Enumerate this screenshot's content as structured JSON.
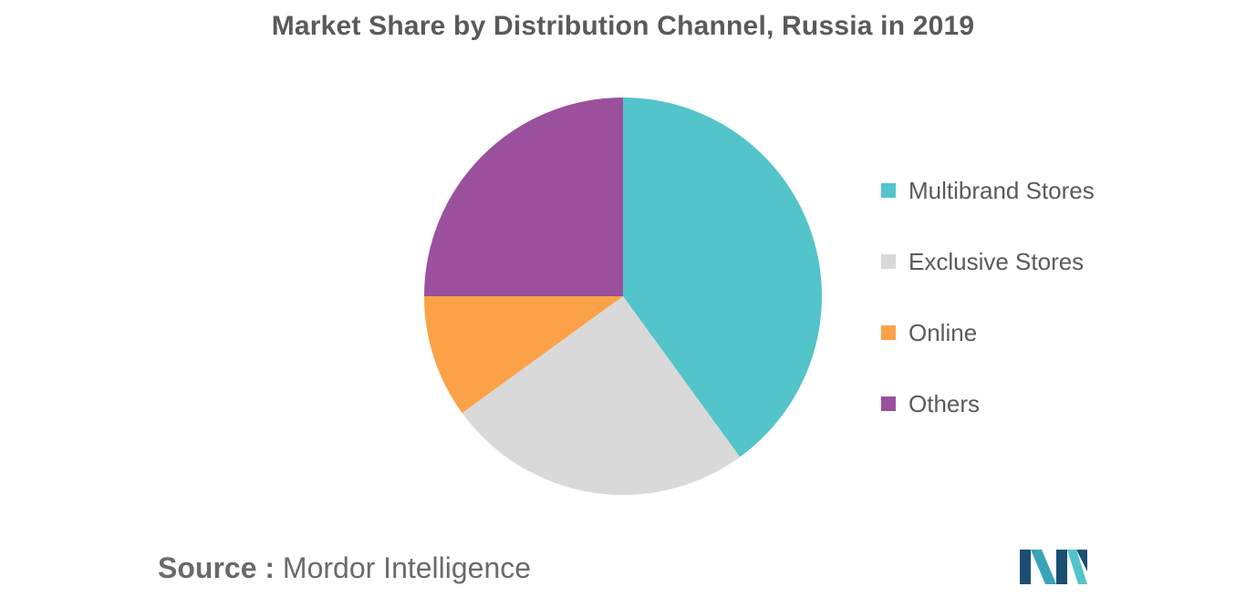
{
  "chart_data": {
    "type": "pie",
    "title": "Market Share by Distribution Channel, Russia in 2019",
    "slices": [
      {
        "label": "Multibrand Stores",
        "value": 40,
        "color": "#52c4ca"
      },
      {
        "label": "Exclusive Stores",
        "value": 25,
        "color": "#d9d9d9"
      },
      {
        "label": "Online",
        "value": 10,
        "color": "#fba249"
      },
      {
        "label": "Others",
        "value": 25,
        "color": "#9b509d"
      }
    ],
    "legend_position": "right"
  },
  "source": {
    "key": "Source :",
    "value": "Mordor Intelligence"
  },
  "logo": {
    "icon": "mordor-intelligence-logo",
    "colors": [
      "#1b4f72",
      "#3aa3b8",
      "#52c4ca"
    ]
  }
}
